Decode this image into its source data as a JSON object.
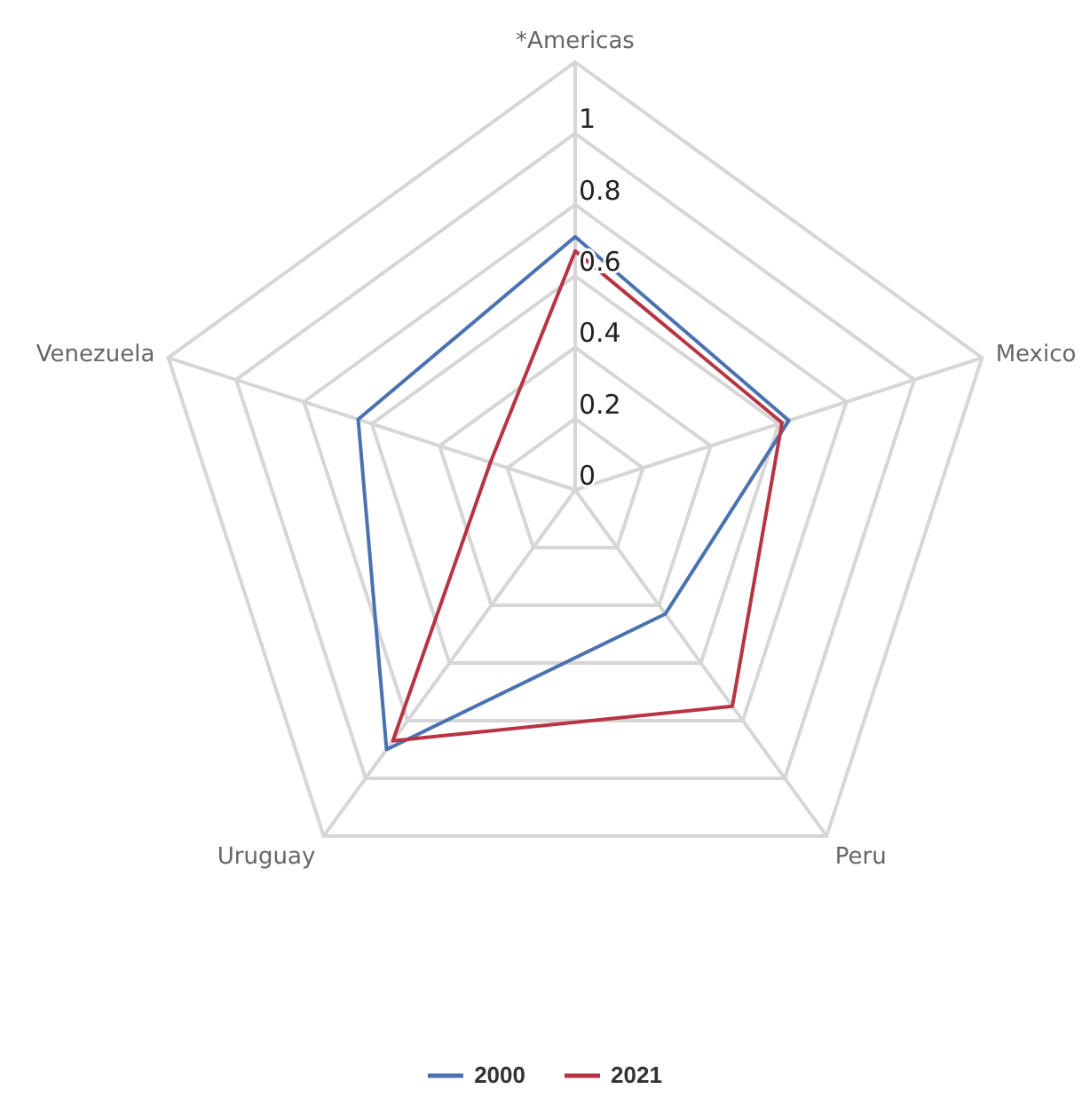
{
  "chart_data": {
    "type": "radar",
    "categories": [
      "*Americas",
      "Mexico",
      "Peru",
      "Uruguay",
      "Venezuela"
    ],
    "series": [
      {
        "name": "2000",
        "color": "#4a72b0",
        "values": [
          0.71,
          0.63,
          0.43,
          0.9,
          0.64
        ]
      },
      {
        "name": "2021",
        "color": "#b73442",
        "values": [
          0.67,
          0.61,
          0.75,
          0.87,
          0.25
        ]
      }
    ],
    "ylim": [
      0,
      1.2
    ],
    "yticks": [
      0,
      0.2,
      0.4,
      0.6,
      0.8,
      1
    ],
    "legend": "bottom",
    "marker": "none"
  }
}
